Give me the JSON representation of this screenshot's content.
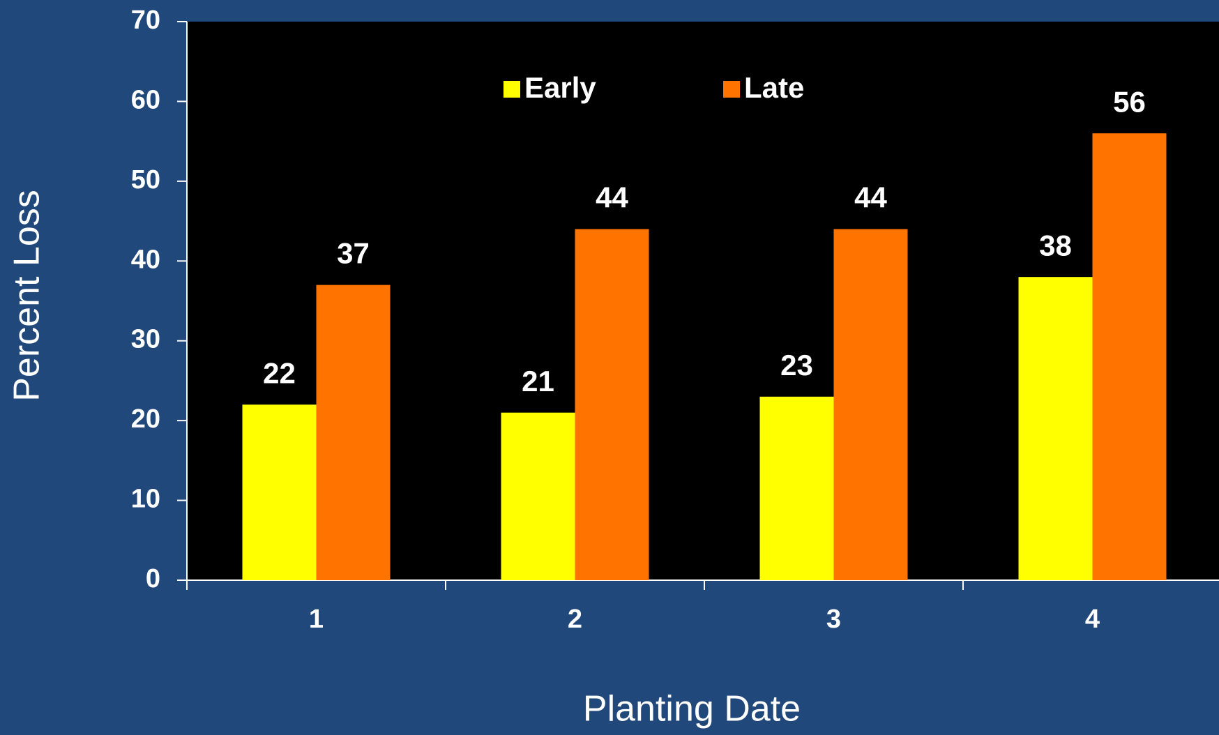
{
  "chart_data": {
    "type": "bar",
    "xlabel": "Planting Date",
    "ylabel": "Percent Loss",
    "categories": [
      "1",
      "2",
      "3",
      "4"
    ],
    "series": [
      {
        "name": "Early",
        "color": "#ffff00",
        "values": [
          22,
          21,
          23,
          38
        ]
      },
      {
        "name": "Late",
        "color": "#ff7300",
        "values": [
          37,
          44,
          44,
          56
        ]
      }
    ],
    "ylim": [
      0,
      70
    ],
    "yticks": [
      0,
      10,
      20,
      30,
      40,
      50,
      60,
      70
    ],
    "legend": "top",
    "plot_background": "#000000"
  }
}
